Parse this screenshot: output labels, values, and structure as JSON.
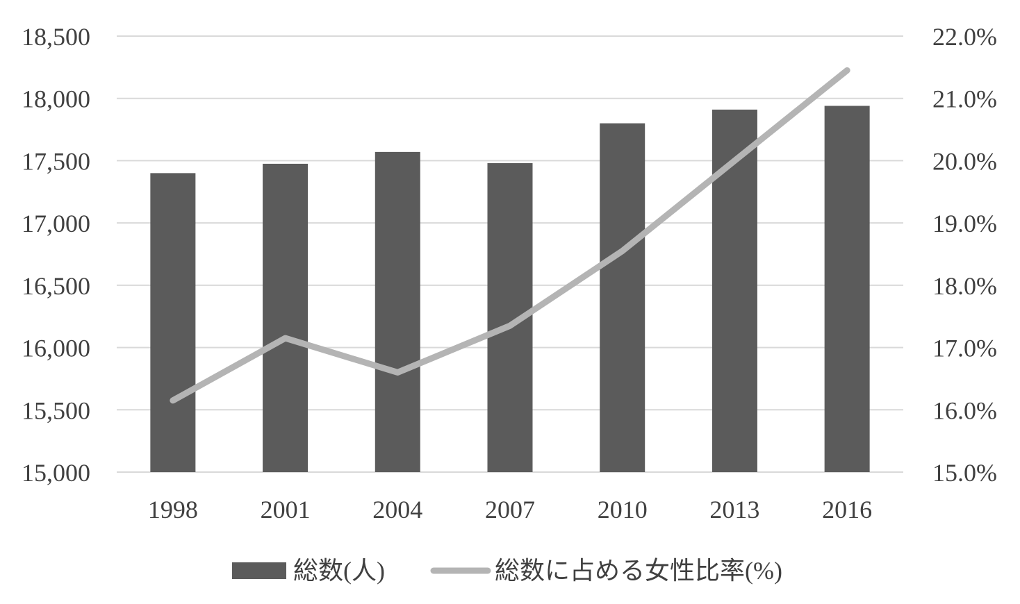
{
  "chart_data": {
    "type": "bar",
    "categories": [
      "1998",
      "2001",
      "2004",
      "2007",
      "2010",
      "2013",
      "2016"
    ],
    "series": [
      {
        "name": "総数(人)",
        "type": "bar",
        "axis": "left",
        "values": [
          17400,
          17475,
          17570,
          17480,
          17800,
          17910,
          17940
        ],
        "color": "#5b5b5b"
      },
      {
        "name": "総数に占める女性比率(%)",
        "type": "line",
        "axis": "right",
        "values": [
          16.15,
          17.15,
          16.6,
          17.35,
          18.55,
          20.0,
          21.45
        ],
        "color": "#b4b4b4"
      }
    ],
    "y_left": {
      "min": 15000,
      "max": 18500,
      "ticks": [
        "15,000",
        "15,500",
        "16,000",
        "16,500",
        "17,000",
        "17,500",
        "18,000",
        "18,500"
      ]
    },
    "y_right": {
      "min": 15.0,
      "max": 22.0,
      "ticks": [
        "15.0%",
        "16.0%",
        "17.0%",
        "18.0%",
        "19.0%",
        "20.0%",
        "21.0%",
        "22.0%"
      ]
    },
    "grid": true,
    "grid_color": "#d9d9d9",
    "legend_position": "bottom"
  }
}
